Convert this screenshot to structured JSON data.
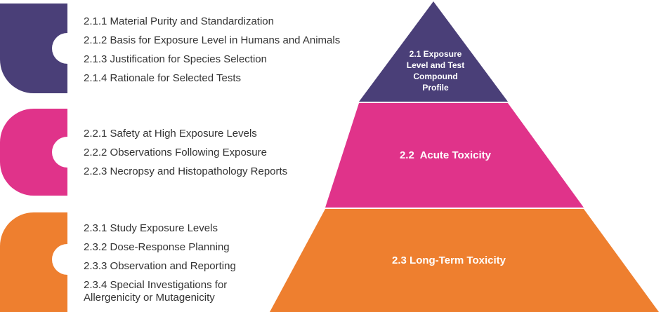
{
  "groups": [
    {
      "color": "#4a3f78",
      "items": [
        "2.1.1 Material Purity and Standardization",
        "2.1.2 Basis for Exposure Level in Humans and Animals",
        "2.1.3 Justification for Species Selection",
        "2.1.4 Rationale for Selected Tests"
      ]
    },
    {
      "color": "#e0338a",
      "items": [
        "2.2.1 Safety at High Exposure Levels",
        "2.2.2 Observations Following Exposure",
        "2.2.3 Necropsy and Histopathology Reports"
      ]
    },
    {
      "color": "#ee7f2f",
      "items": [
        "2.3.1 Study Exposure Levels",
        "2.3.2 Dose-Response Planning",
        "2.3.3 Observation and Reporting",
        "2.3.4 Special Investigations for Allergenicity or Mutagenicity"
      ]
    }
  ],
  "pyramid": {
    "tiers": [
      {
        "label": "2.1 Exposure Level and Test Compound Profile",
        "color": "#4a3f78"
      },
      {
        "label": "2.2  Acute Toxicity",
        "color": "#e0338a"
      },
      {
        "label": "2.3 Long-Term Toxicity",
        "color": "#ee7f2f"
      }
    ]
  }
}
